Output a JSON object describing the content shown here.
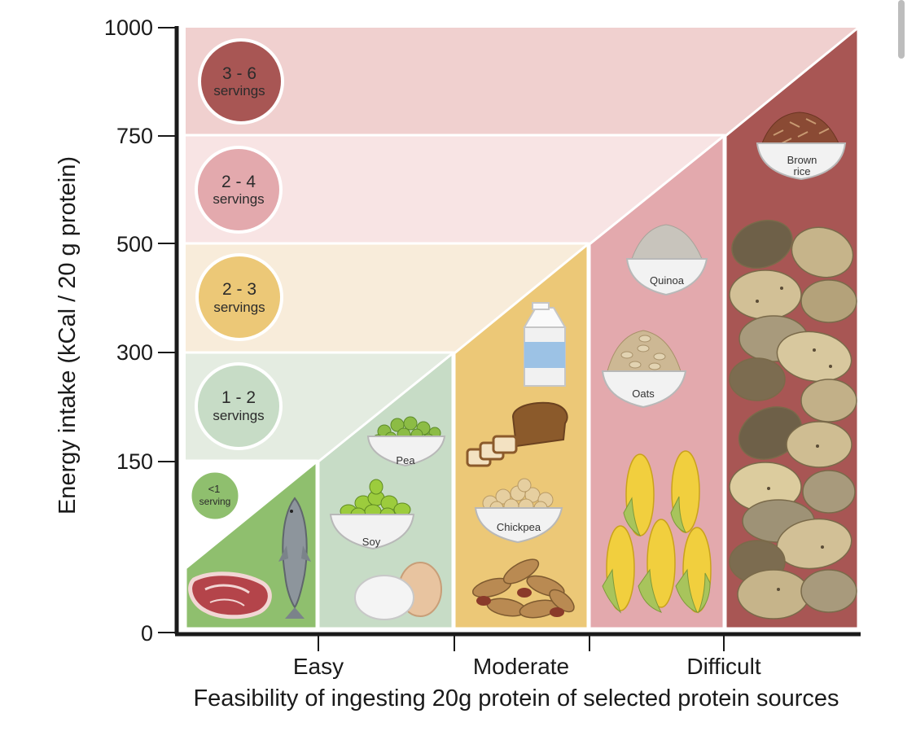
{
  "chart_data": {
    "type": "diagram",
    "title": "",
    "ylabel": "Energy intake (kCal / 20 g protein)",
    "xlabel": "Feasibility of ingesting 20g protein of selected protein sources",
    "y_ticks": [
      "0",
      "150",
      "300",
      "500",
      "750",
      "1000"
    ],
    "x_categories": [
      "Easy",
      "Moderate",
      "Difficult"
    ],
    "serving_bands": [
      {
        "range_kcal": [
          0,
          150
        ],
        "num": "<1",
        "unit": "serving",
        "color": "#8fbf6e"
      },
      {
        "range_kcal": [
          150,
          300
        ],
        "num": "1 - 2",
        "unit": "servings",
        "color": "#c7dcc6"
      },
      {
        "range_kcal": [
          300,
          500
        ],
        "num": "2 - 3",
        "unit": "servings",
        "color": "#ecc877"
      },
      {
        "range_kcal": [
          500,
          750
        ],
        "num": "2 - 4",
        "unit": "servings",
        "color": "#e3a9ad"
      },
      {
        "range_kcal": [
          750,
          1000
        ],
        "num": "3 - 6",
        "unit": "servings",
        "color": "#a85654"
      }
    ],
    "foods": [
      {
        "label": "Pea"
      },
      {
        "label": "Soy"
      },
      {
        "label": "Chickpea"
      },
      {
        "label": "Quinoa"
      },
      {
        "label": "Oats"
      },
      {
        "label": "Brown\nrice"
      }
    ]
  },
  "colors": {
    "band_green_light": "#e4ece1",
    "band_yellow_light": "#f8ecda",
    "band_pink_light": "#f8e4e4",
    "band_red_light": "#f0d0cf",
    "axis": "#1a1a1a"
  }
}
